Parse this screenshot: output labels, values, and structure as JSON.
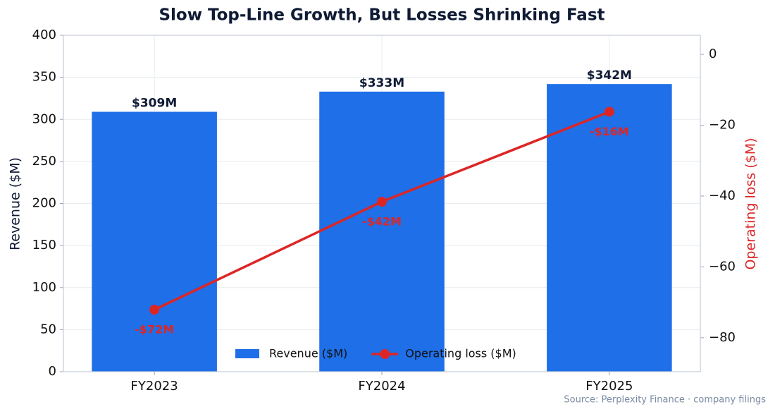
{
  "chart_data": {
    "type": "bar",
    "title": "Slow Top-Line Growth, But Losses Shrinking Fast",
    "categories": [
      "FY2023",
      "FY2024",
      "FY2025"
    ],
    "series": [
      {
        "name": "Revenue ($M)",
        "type": "bar",
        "color": "#1f6fe8",
        "values": [
          309,
          333,
          342
        ],
        "value_labels": [
          "$309M",
          "$333M",
          "$342M"
        ]
      },
      {
        "name": "Operating loss ($M)",
        "type": "line",
        "axis": "y2",
        "color": "#dc2626",
        "values": [
          -72.1,
          -41.6,
          -16.2
        ],
        "value_labels": [
          "-$72M",
          "-$42M",
          "-$16M"
        ]
      }
    ],
    "ylabel": "Revenue ($M)",
    "y2label": "Operating loss ($M)",
    "ylim": [
      0,
      400
    ],
    "yticks": [
      0,
      50,
      100,
      150,
      200,
      250,
      300,
      350,
      400
    ],
    "y2lim": [
      -89.6,
      5.4
    ],
    "y2ticks": [
      0,
      {
        "value": -20,
        "label": "−20"
      },
      {
        "value": -40,
        "label": "−40"
      },
      {
        "value": -60,
        "label": "−60"
      },
      {
        "value": -80,
        "label": "−80"
      }
    ],
    "grid": true,
    "legend": "lower center",
    "source": "Source: Perplexity Finance · company filings"
  }
}
